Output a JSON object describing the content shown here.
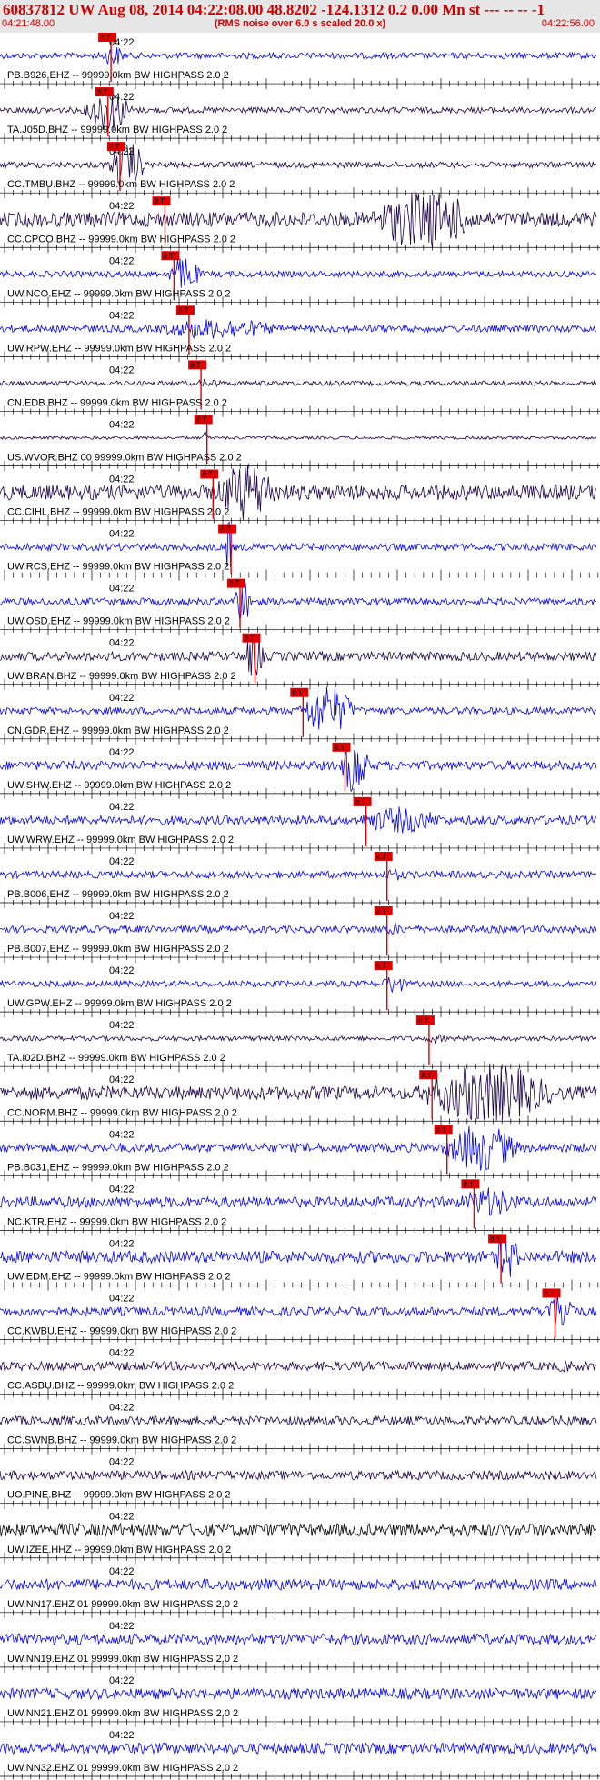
{
  "header": {
    "title": "60837812 UW Aug 08, 2014 04:22:08.00   48.8202 -124.1312  0.2 0.00 Mn st --- -- --   -1",
    "subtitle": "(RMS noise over 6.0 s scaled 20.0 x)",
    "start_time": "04:21:48.00",
    "end_time": "04:22:56.00"
  },
  "time_tick_label": "04:22",
  "pick_label": "ϑ.T",
  "colors": {
    "blue": "#0000ee",
    "dark": "#1a0044",
    "black": "#000000",
    "pick": "#e00000",
    "header_text": "#d00000"
  },
  "traces": [
    {
      "label": "PB.B926.EHZ -- 99999.0km BW  HIGHPASS  2.0  2",
      "color": "blue",
      "pick": 0.185,
      "amp": 0.1,
      "burst": 0.35,
      "burst_len": 0.05,
      "burst_start": 0.17
    },
    {
      "label": "TA.J05D.BHZ -- 99999.0km BW  HIGHPASS  2.0  2",
      "color": "dark",
      "pick": 0.18,
      "amp": 0.1,
      "burst": 0.75,
      "burst_len": 0.1,
      "burst_start": 0.14
    },
    {
      "label": "CC.TMBU.BHZ -- 99999.0km BW  HIGHPASS  2.0  2",
      "color": "dark",
      "pick": 0.2,
      "amp": 0.1,
      "burst": 0.8,
      "burst_len": 0.08,
      "burst_start": 0.18
    },
    {
      "label": "CC.CPCO.BHZ -- 99999.0km BW  HIGHPASS  2.0  2",
      "color": "dark",
      "pick": 0.275,
      "amp": 0.25,
      "burst": 1.0,
      "burst_len": 0.22,
      "burst_start": 0.62
    },
    {
      "label": "UW.NCO.EHZ -- 99999.0km BW  HIGHPASS  2.0  2",
      "color": "blue",
      "pick": 0.29,
      "amp": 0.1,
      "burst": 0.6,
      "burst_len": 0.07,
      "burst_start": 0.28
    },
    {
      "label": "UW.RPW.EHZ -- 99999.0km BW  HIGHPASS  2.0  2",
      "color": "blue",
      "pick": 0.315,
      "amp": 0.12,
      "burst": 0.35,
      "burst_len": 0.25,
      "burst_start": 0.26
    },
    {
      "label": "CN.EDB.BHZ -- 99999.0km BW  HIGHPASS  2.0  2",
      "color": "dark",
      "pick": 0.335,
      "amp": 0.08,
      "burst": 0.15,
      "burst_len": 0.05,
      "burst_start": 0.33
    },
    {
      "label": "US.WVOR.BHZ 00 99999.0km BW  HIGHPASS  2.0  2",
      "color": "dark",
      "pick": 0.345,
      "amp": 0.05,
      "burst": 0.3,
      "burst_len": 0.01,
      "burst_start": 0.34
    },
    {
      "label": "CC.CIHL.BHZ -- 99999.0km BW  HIGHPASS  2.0  2",
      "color": "dark",
      "pick": 0.355,
      "amp": 0.25,
      "burst": 1.0,
      "burst_len": 0.13,
      "burst_start": 0.36
    },
    {
      "label": "UW.RCS.EHZ -- 99999.0km BW  HIGHPASS  2.0  2",
      "color": "blue",
      "pick": 0.385,
      "amp": 0.12,
      "burst": 0.9,
      "burst_len": 0.02,
      "burst_start": 0.375
    },
    {
      "label": "UW.OSD.EHZ -- 99999.0km BW  HIGHPASS  2.0  2",
      "color": "blue",
      "pick": 0.4,
      "amp": 0.12,
      "burst": 0.8,
      "burst_len": 0.04,
      "burst_start": 0.39
    },
    {
      "label": "UW.BRAN.BHZ -- 99999.0km BW  HIGHPASS  2.0  2",
      "color": "dark",
      "pick": 0.425,
      "amp": 0.15,
      "burst": 0.85,
      "burst_len": 0.04,
      "burst_start": 0.41
    },
    {
      "label": "CN.GDR.EHZ -- 99999.0km BW  HIGHPASS  2.0  2",
      "color": "blue",
      "pick": 0.505,
      "amp": 0.12,
      "burst": 0.85,
      "burst_len": 0.12,
      "burst_start": 0.5
    },
    {
      "label": "UW.SHW.EHZ -- 99999.0km BW  HIGHPASS  2.0  2",
      "color": "blue",
      "pick": 0.575,
      "amp": 0.15,
      "burst": 1.0,
      "burst_len": 0.06,
      "burst_start": 0.57
    },
    {
      "label": "UW.WRW.EHZ -- 99999.0km BW  HIGHPASS  2.0  2",
      "color": "blue",
      "pick": 0.61,
      "amp": 0.15,
      "burst": 0.45,
      "burst_len": 0.17,
      "burst_start": 0.6
    },
    {
      "label": "PB.B006.EHZ -- 99999.0km BW  HIGHPASS  2.0  2",
      "color": "blue",
      "pick": 0.645,
      "amp": 0.12,
      "burst": 0.2,
      "burst_len": 0.05,
      "burst_start": 0.64
    },
    {
      "label": "PB.B007.EHZ -- 99999.0km BW  HIGHPASS  2.0  2",
      "color": "blue",
      "pick": 0.645,
      "amp": 0.12,
      "burst": 0.2,
      "burst_len": 0.05,
      "burst_start": 0.64
    },
    {
      "label": "UW.GPW.EHZ -- 99999.0km BW  HIGHPASS  2.0  2",
      "color": "blue",
      "pick": 0.645,
      "amp": 0.1,
      "burst": 0.35,
      "burst_len": 0.05,
      "burst_start": 0.64
    },
    {
      "label": "TA.I02D.BHZ -- 99999.0km BW  HIGHPASS  2.0  2",
      "color": "dark",
      "pick": 0.715,
      "amp": 0.08,
      "burst": 0.15,
      "burst_len": 0.05,
      "burst_start": 0.71
    },
    {
      "label": "CC.NORM.BHZ -- 99999.0km BW  HIGHPASS  2.0  2",
      "color": "dark",
      "pick": 0.72,
      "amp": 0.22,
      "burst": 1.0,
      "burst_len": 0.28,
      "burst_start": 0.7
    },
    {
      "label": "PB.B031.EHZ -- 99999.0km BW  HIGHPASS  2.0  2",
      "color": "blue",
      "pick": 0.745,
      "amp": 0.15,
      "burst": 0.8,
      "burst_len": 0.16,
      "burst_start": 0.74
    },
    {
      "label": "NC.KTR.EHZ -- 99999.0km BW  HIGHPASS  2.0  2",
      "color": "blue",
      "pick": 0.79,
      "amp": 0.18,
      "burst": 0.5,
      "burst_len": 0.12,
      "burst_start": 0.77
    },
    {
      "label": "UW.EDM.EHZ -- 99999.0km BW  HIGHPASS  2.0  2",
      "color": "blue",
      "pick": 0.835,
      "amp": 0.2,
      "burst": 0.8,
      "burst_len": 0.05,
      "burst_start": 0.83
    },
    {
      "label": "CC.KWBU.EHZ -- 99999.0km BW  HIGHPASS  2.0  2",
      "color": "blue",
      "pick": 0.925,
      "amp": 0.15,
      "burst": 0.7,
      "burst_len": 0.07,
      "burst_start": 0.91
    },
    {
      "label": "CC.ASBU.BHZ -- 99999.0km BW  HIGHPASS  2.0  2",
      "color": "dark",
      "pick": null,
      "amp": 0.15,
      "burst": 0.2,
      "burst_len": 0.05,
      "burst_start": 0.93
    },
    {
      "label": "CC.SWNB.BHZ -- 99999.0km BW  HIGHPASS  2.0  2",
      "color": "dark",
      "pick": null,
      "amp": 0.15,
      "burst": 0.2,
      "burst_len": 0.05,
      "burst_start": 0.93
    },
    {
      "label": "UO.PINE.BHZ -- 99999.0km BW  HIGHPASS  2.0  2",
      "color": "dark",
      "pick": null,
      "amp": 0.15,
      "burst": 0.0,
      "burst_len": 0.0,
      "burst_start": 0.0
    },
    {
      "label": "UW.IZEE.HHZ -- 99999.0km BW  HIGHPASS  2.0  2",
      "color": "black",
      "pick": null,
      "amp": 0.22,
      "burst": 0.0,
      "burst_len": 0.0,
      "burst_start": 0.0
    },
    {
      "label": "UW.NN17.EHZ 01 99999.0km BW  HIGHPASS  2.0  2",
      "color": "blue",
      "pick": null,
      "amp": 0.18,
      "burst": 0.0,
      "burst_len": 0.0,
      "burst_start": 0.0
    },
    {
      "label": "UW.NN19.EHZ 01 99999.0km BW  HIGHPASS  2.0  2",
      "color": "blue",
      "pick": null,
      "amp": 0.18,
      "burst": 0.0,
      "burst_len": 0.0,
      "burst_start": 0.0
    },
    {
      "label": "UW.NN21.EHZ 01 99999.0km BW  HIGHPASS  2.0  2",
      "color": "blue",
      "pick": null,
      "amp": 0.18,
      "burst": 0.0,
      "burst_len": 0.0,
      "burst_start": 0.0
    },
    {
      "label": "UW.NN32.EHZ 01 99999.0km BW  HIGHPASS  2.0  2",
      "color": "blue",
      "pick": null,
      "amp": 0.18,
      "burst": 0.0,
      "burst_len": 0.0,
      "burst_start": 0.0
    }
  ]
}
